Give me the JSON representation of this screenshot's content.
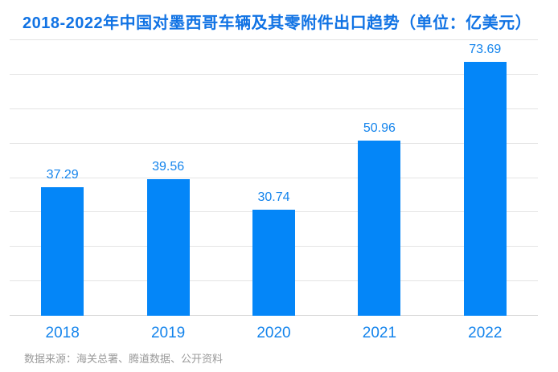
{
  "chart_data": {
    "type": "bar",
    "title": "2018-2022年中国对墨西哥车辆及其零附件出口趋势（单位：亿美元）",
    "categories": [
      "2018",
      "2019",
      "2020",
      "2021",
      "2022"
    ],
    "values": [
      37.29,
      39.56,
      30.74,
      50.96,
      73.69
    ],
    "value_labels": [
      "37.29",
      "39.56",
      "30.74",
      "50.96",
      "73.69"
    ],
    "xlabel": "",
    "ylabel": "",
    "ylim": [
      0,
      80
    ],
    "grid": true,
    "grid_interval": 10,
    "legend_position": "none",
    "colors": {
      "bar": "#0486F8",
      "value_label": "#1484EC",
      "category_label": "#1484EC",
      "title": "#1173E4",
      "gridline": "#E4E4E4",
      "axis_line": "#D5D5D5",
      "background": "#FFFFFF",
      "source_text": "#9A9A9A"
    }
  },
  "footer": {
    "source": "数据来源：海关总署、腾道数据、公开资料"
  }
}
